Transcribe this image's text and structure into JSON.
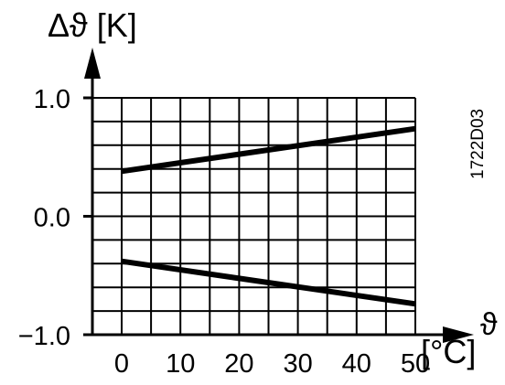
{
  "chart_data": {
    "type": "line",
    "title": "",
    "ylabel": "Δϑ [K]",
    "xlabel_symbol": "ϑ",
    "xlabel_unit": "[°C]",
    "code": "1722D03",
    "xlim": [
      0,
      50
    ],
    "ylim": [
      -1.0,
      1.0
    ],
    "x_ticks": [
      {
        "value": 0,
        "label": "0"
      },
      {
        "value": 10,
        "label": "10"
      },
      {
        "value": 20,
        "label": "20"
      },
      {
        "value": 30,
        "label": "30"
      },
      {
        "value": 40,
        "label": "40"
      },
      {
        "value": 50,
        "label": "50"
      }
    ],
    "y_ticks": [
      {
        "value": 1.0,
        "label": "1.0"
      },
      {
        "value": 0.0,
        "label": "0.0"
      },
      {
        "value": -1.0,
        "label": "−1.0"
      }
    ],
    "grid": true,
    "grid_step_x": 5,
    "grid_step_y": 0.2,
    "series": [
      {
        "x": [
          0,
          50
        ],
        "y": [
          0.38,
          0.74
        ]
      },
      {
        "x": [
          0,
          50
        ],
        "y": [
          -0.38,
          -0.74
        ]
      }
    ]
  }
}
